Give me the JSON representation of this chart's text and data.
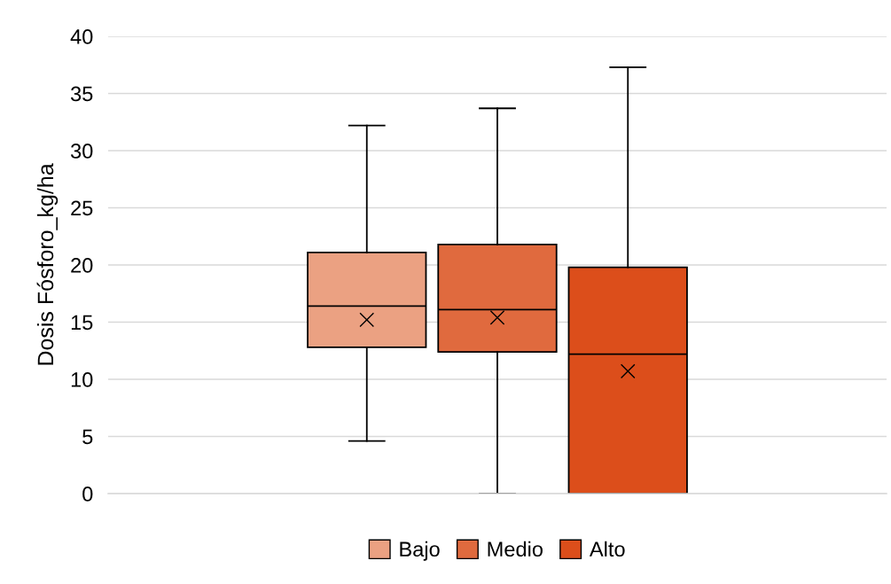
{
  "chart_data": {
    "type": "box",
    "ylabel": "Dosis Fósforo_kg/ha",
    "categories": [
      null
    ],
    "series": [
      {
        "name": "Bajo",
        "color": "#eba182",
        "boxes": [
          {
            "low": 4.6,
            "q1": 12.8,
            "median": 16.4,
            "q3": 21.1,
            "high": 32.2,
            "mean": 15.2
          }
        ]
      },
      {
        "name": "Medio",
        "color": "#e06a3e",
        "boxes": [
          {
            "low": 0,
            "q1": 12.4,
            "median": 16.1,
            "q3": 21.8,
            "high": 33.7,
            "mean": 15.4
          }
        ]
      },
      {
        "name": "Alto",
        "color": "#dc4e1b",
        "boxes": [
          {
            "low": 0,
            "q1": 0,
            "median": 12.2,
            "q3": 19.8,
            "high": 37.3,
            "mean": 10.7
          }
        ]
      }
    ],
    "ylim": [
      0,
      40
    ],
    "yticks": [
      0,
      5,
      10,
      15,
      20,
      25,
      30,
      35,
      40
    ],
    "grid": "y",
    "legend": "bottom",
    "marker": "cross",
    "tick_labels": "y"
  }
}
